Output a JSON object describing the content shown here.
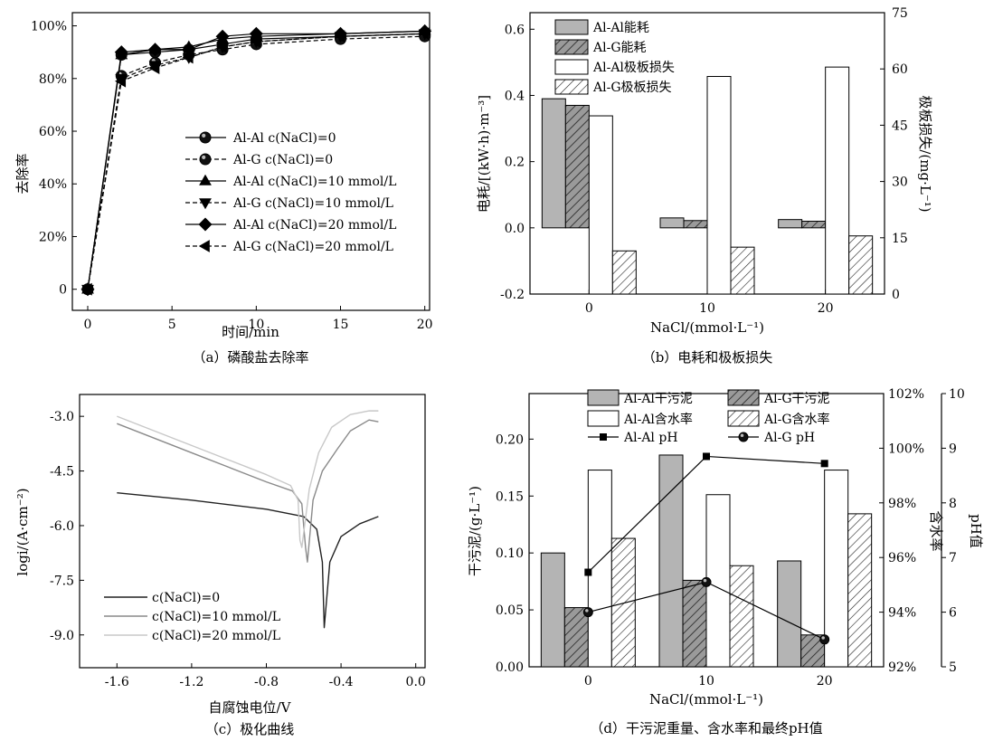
{
  "chart_data": [
    {
      "type": "line",
      "title": "（a）磷酸盐去除率",
      "xlabel": "时间/min",
      "ylabel": "去除率",
      "xlim": [
        0,
        20.5
      ],
      "ylim": [
        -0.08,
        1.05
      ],
      "xticks": [
        "0",
        "5",
        "10",
        "15",
        "20"
      ],
      "yticks": [
        "0",
        "20%",
        "40%",
        "60%",
        "80%",
        "100%"
      ],
      "series": [
        {
          "name": "Al-Al c(NaCl)=0",
          "marker": "circle",
          "dash": false,
          "x": [
            0,
            2,
            4,
            6,
            8,
            10,
            15,
            20
          ],
          "y": [
            0,
            0.89,
            0.9,
            0.91,
            0.93,
            0.95,
            0.96,
            0.97
          ]
        },
        {
          "name": "Al-G c(NaCl)=0",
          "marker": "circle",
          "dash": true,
          "x": [
            0,
            2,
            4,
            6,
            8,
            10,
            15,
            20
          ],
          "y": [
            0,
            0.81,
            0.86,
            0.89,
            0.91,
            0.93,
            0.95,
            0.96
          ]
        },
        {
          "name": "Al-Al c(NaCl)=10 mmol/L",
          "marker": "triangle-up",
          "dash": false,
          "x": [
            0,
            2,
            4,
            6,
            8,
            10,
            15,
            20
          ],
          "y": [
            0,
            0.89,
            0.91,
            0.92,
            0.95,
            0.96,
            0.97,
            0.98
          ]
        },
        {
          "name": "Al-G c(NaCl)=10 mmol/L",
          "marker": "triangle-down",
          "dash": true,
          "x": [
            0,
            2,
            4,
            6,
            8,
            10,
            15,
            20
          ],
          "y": [
            0,
            0.8,
            0.85,
            0.88,
            0.92,
            0.94,
            0.96,
            0.97
          ]
        },
        {
          "name": "Al-Al c(NaCl)=20 mmol/L",
          "marker": "diamond",
          "dash": false,
          "x": [
            0,
            2,
            4,
            6,
            8,
            10,
            15,
            20
          ],
          "y": [
            0,
            0.9,
            0.91,
            0.91,
            0.96,
            0.97,
            0.97,
            0.98
          ]
        },
        {
          "name": "Al-G c(NaCl)=20 mmol/L",
          "marker": "triangle-left",
          "dash": true,
          "x": [
            0,
            2,
            4,
            6,
            8,
            10,
            15,
            20
          ],
          "y": [
            0,
            0.79,
            0.84,
            0.88,
            0.92,
            0.94,
            0.96,
            0.97
          ]
        }
      ]
    },
    {
      "type": "bar",
      "title": "（b）电耗和极板损失",
      "xlabel": "NaCl/(mmol·L⁻¹)",
      "ylabel": "电耗/[(kW·h)·m⁻³]",
      "ylabel_right": "极板损失/(mg·L⁻¹)",
      "categories": [
        "0",
        "10",
        "20"
      ],
      "ylim": [
        -0.2,
        0.65
      ],
      "ylim_right": [
        0,
        75
      ],
      "yticks": [
        "-0.2",
        "0.0",
        "0.2",
        "0.4",
        "0.6"
      ],
      "yticks_right": [
        "0",
        "15",
        "30",
        "45",
        "60",
        "75"
      ],
      "series": [
        {
          "name": "Al-Al能耗",
          "axis": "left",
          "fill": "gray",
          "values": [
            0.39,
            0.03,
            0.025
          ]
        },
        {
          "name": "Al-G能耗",
          "axis": "left",
          "fill": "hatch-gray",
          "values": [
            0.37,
            0.022,
            0.02
          ]
        },
        {
          "name": "Al-Al极板损失",
          "axis": "right",
          "fill": "white",
          "values": [
            47.5,
            58.0,
            60.5
          ]
        },
        {
          "name": "Al-G极板损失",
          "axis": "right",
          "fill": "hatch",
          "values": [
            11.5,
            12.5,
            15.5
          ]
        }
      ]
    },
    {
      "type": "line",
      "title": "（c）极化曲线",
      "xlabel": "自腐蚀电位/V",
      "ylabel": "logi/(A·cm⁻²)",
      "xlim": [
        -1.8,
        0.05
      ],
      "ylim": [
        -9.9,
        -2.4
      ],
      "xticks": [
        "-1.6",
        "-1.2",
        "-0.8",
        "-0.4",
        "0.0"
      ],
      "yticks": [
        "-3.0",
        "-4.5",
        "-6.0",
        "-7.5",
        "-9.0"
      ],
      "series": [
        {
          "name": "c(NaCl)=0",
          "color": "#222222",
          "x": [
            -1.6,
            -1.2,
            -0.8,
            -0.6,
            -0.53,
            -0.5,
            -0.49,
            -0.46,
            -0.4,
            -0.3,
            -0.2
          ],
          "y": [
            -5.1,
            -5.3,
            -5.55,
            -5.75,
            -6.1,
            -7.0,
            -8.8,
            -7.0,
            -6.3,
            -5.95,
            -5.75
          ]
        },
        {
          "name": "c(NaCl)=10 mmol/L",
          "color": "#8a8a8a",
          "x": [
            -1.6,
            -1.4,
            -1.2,
            -1.0,
            -0.8,
            -0.66,
            -0.61,
            -0.59,
            -0.58,
            -0.55,
            -0.5,
            -0.42,
            -0.35,
            -0.25,
            -0.2
          ],
          "y": [
            -3.2,
            -3.6,
            -4.0,
            -4.4,
            -4.8,
            -5.05,
            -5.4,
            -6.6,
            -7.0,
            -5.3,
            -4.5,
            -3.9,
            -3.4,
            -3.1,
            -3.15
          ]
        },
        {
          "name": "c(NaCl)=20 mmol/L",
          "color": "#c8c8c8",
          "x": [
            -1.6,
            -1.4,
            -1.2,
            -1.0,
            -0.8,
            -0.67,
            -0.63,
            -0.62,
            -0.61,
            -0.57,
            -0.52,
            -0.45,
            -0.35,
            -0.25,
            -0.2
          ],
          "y": [
            -3.0,
            -3.4,
            -3.8,
            -4.2,
            -4.6,
            -4.9,
            -5.3,
            -6.4,
            -6.6,
            -5.0,
            -4.0,
            -3.3,
            -2.95,
            -2.85,
            -2.85
          ]
        }
      ]
    },
    {
      "type": "bar",
      "title": "（d）干污泥重量、含水率和最终pH值",
      "xlabel": "NaCl/(mmol·L⁻¹)",
      "ylabel": "干污泥/(g·L⁻¹)",
      "ylabel_right": "含水率",
      "ylabel_right2": "pH值",
      "categories": [
        "0",
        "10",
        "20"
      ],
      "ylim": [
        0,
        0.24
      ],
      "ylim_right": [
        92,
        102
      ],
      "ylim_right2": [
        5,
        10
      ],
      "yticks": [
        "0.00",
        "0.05",
        "0.10",
        "0.15",
        "0.20"
      ],
      "yticks_right": [
        "92%",
        "94%",
        "96%",
        "98%",
        "100%",
        "102%"
      ],
      "yticks_right2": [
        "5",
        "6",
        "7",
        "8",
        "9",
        "10"
      ],
      "series": [
        {
          "name": "Al-Al干污泥",
          "axis": "left",
          "fill": "gray",
          "values": [
            0.1,
            0.186,
            0.093
          ]
        },
        {
          "name": "Al-G干污泥",
          "axis": "left",
          "fill": "hatch-gray",
          "values": [
            0.052,
            0.076,
            0.028
          ]
        },
        {
          "name": "Al-Al含水率",
          "axis": "right",
          "fill": "white",
          "values": [
            99.2,
            98.3,
            99.2
          ]
        },
        {
          "name": "Al-G含水率",
          "axis": "right",
          "fill": "hatch",
          "values": [
            96.7,
            95.7,
            97.6
          ]
        },
        {
          "name": "Al-Al pH",
          "axis": "right2",
          "kind": "line",
          "marker": "square",
          "values": [
            6.73,
            8.85,
            8.72
          ]
        },
        {
          "name": "Al-G pH",
          "axis": "right2",
          "kind": "line",
          "marker": "circle",
          "values": [
            6.0,
            6.55,
            5.5
          ]
        }
      ]
    }
  ]
}
